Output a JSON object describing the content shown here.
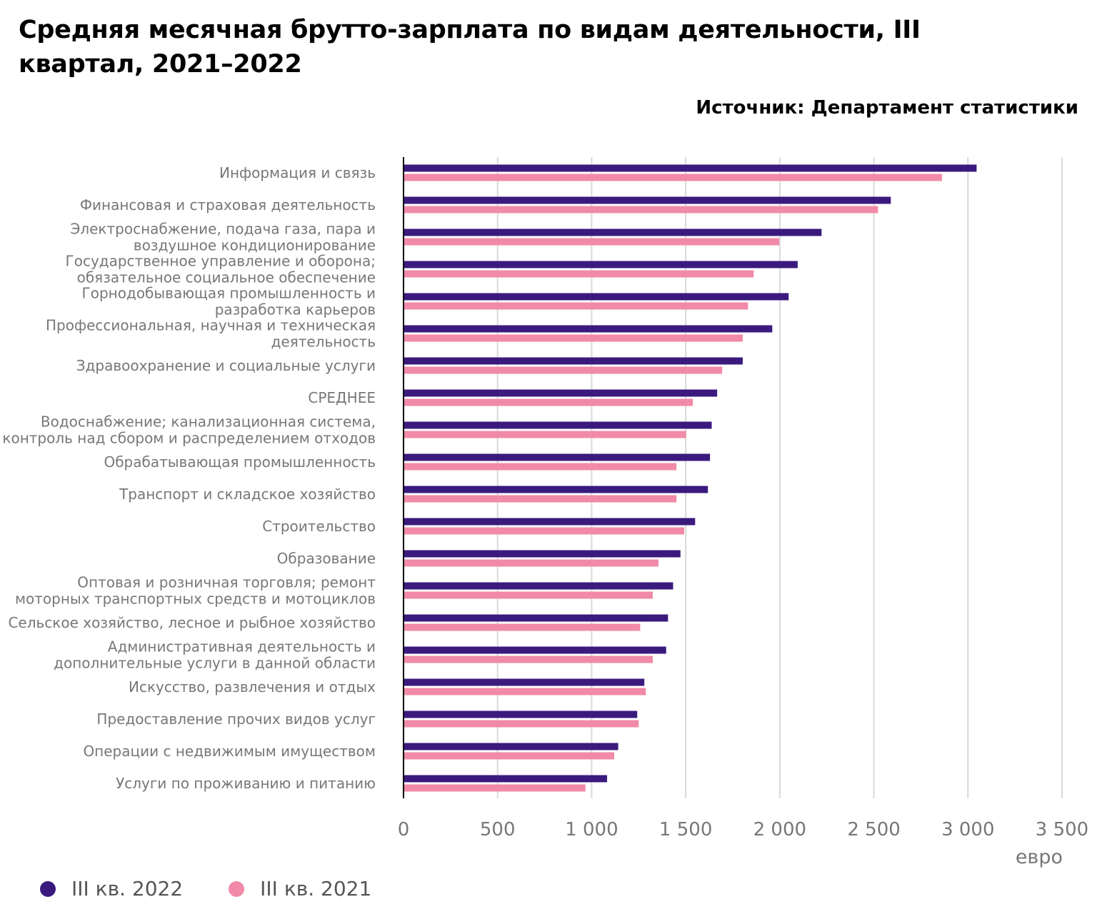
{
  "title": "Средняя месячная брутто-зарплата по видам деятельности, III квартал, 2021–2022",
  "source": "Источник: Департамент статистики",
  "chart_data": {
    "type": "bar",
    "orientation": "horizontal",
    "title": "Средняя месячная брутто-зарплата по видам деятельности, III квартал, 2021–2022",
    "xlabel": "евро",
    "ylabel": "",
    "xlim": [
      0,
      3500
    ],
    "xticks": [
      0,
      500,
      1000,
      1500,
      2000,
      2500,
      3000,
      3500
    ],
    "xtick_labels": [
      "0",
      "500",
      "1 000",
      "1 500",
      "2 000",
      "2 500",
      "3 000",
      "3 500"
    ],
    "grid": "vertical",
    "legend_position": "bottom-left",
    "categories": [
      "Информация и связь",
      "Финансовая и страховая деятельность",
      "Электроснабжение, подача газа, пара и воздушное кондиционирование",
      "Государственное управление и оборона; обязательное социальное обеспечение",
      "Горнодобывающая промышленность и разработка карьеров",
      "Профессиональная, научная и техническая деятельность",
      "Здравоохранение и социальные услуги",
      "СРЕДНЕЕ",
      "Водоснабжение; канализационная система, контроль над сбором и распределением отходов",
      "Обрабатывающая промышленность",
      "Транспорт и складское хозяйство",
      "Строительство",
      "Образование",
      "Оптовая и розничная торговля; ремонт моторных транспортных средств и мотоциклов",
      "Сельское хозяйство, лесное и рыбное хозяйство",
      "Административная деятельность и дополнительные услуги в данной области",
      "Искусство, развлечения и отдых",
      "Предоставление прочих видов услуг",
      "Операции с недвижимым имуществом",
      "Услуги по проживанию и питанию"
    ],
    "category_lines": [
      [
        "Информация и связь"
      ],
      [
        "Финансовая и страховая деятельность"
      ],
      [
        "Электроснабжение, подача газа, пара и",
        "воздушное кондиционирование"
      ],
      [
        "Государственное управление и оборона;",
        "обязательное социальное обеспечение"
      ],
      [
        "Горнодобывающая промышленность и",
        "разработка карьеров"
      ],
      [
        "Профессиональная, научная и техническая",
        "деятельность"
      ],
      [
        "Здравоохранение и социальные услуги"
      ],
      [
        "СРЕДНЕЕ"
      ],
      [
        "Водоснабжение; канализационная система,",
        "контроль над сбором и распределением отходов"
      ],
      [
        "Обрабатывающая промышленность"
      ],
      [
        "Транспорт и складское хозяйство"
      ],
      [
        "Строительство"
      ],
      [
        "Образование"
      ],
      [
        "Оптовая и розничная торговля; ремонт",
        "моторных транспортных средств и мотоциклов"
      ],
      [
        "Сельское хозяйство, лесное и рыбное хозяйство"
      ],
      [
        "Административная деятельность и",
        "дополнительные услуги в данной области"
      ],
      [
        "Искусство, развлечения и отдых"
      ],
      [
        "Предоставление прочих видов услуг"
      ],
      [
        "Операции с недвижимым имуществом"
      ],
      [
        "Услуги по проживанию и питанию"
      ]
    ],
    "series": [
      {
        "name": "III кв. 2022",
        "color": "#3b1a7e",
        "values": [
          3046,
          2590,
          2222,
          2095,
          2047,
          1960,
          1803,
          1667,
          1638,
          1629,
          1618,
          1550,
          1472,
          1433,
          1406,
          1396,
          1280,
          1242,
          1141,
          1082
        ]
      },
      {
        "name": "III кв. 2021",
        "color": "#f18aa8",
        "values": [
          2862,
          2522,
          1997,
          1861,
          1831,
          1803,
          1694,
          1538,
          1502,
          1451,
          1451,
          1492,
          1355,
          1325,
          1258,
          1325,
          1288,
          1250,
          1120,
          967
        ]
      }
    ]
  }
}
